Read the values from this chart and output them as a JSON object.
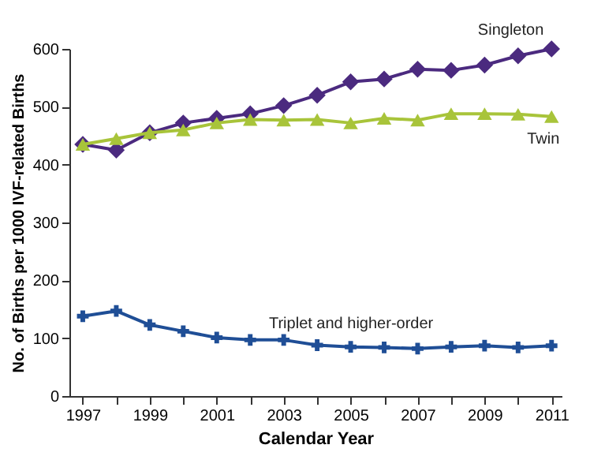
{
  "chart_data": {
    "type": "line",
    "xlabel": "Calendar Year",
    "ylabel": "No. of Births per 1000 IVF-related Births",
    "x": [
      1997,
      1998,
      1999,
      2000,
      2001,
      2002,
      2003,
      2004,
      2005,
      2006,
      2007,
      2008,
      2009,
      2010,
      2011
    ],
    "xlim": [
      1996.6,
      2011.3
    ],
    "xticks": [
      1997,
      {
        "value": 1998,
        "label": null
      },
      1999,
      {
        "value": 2000,
        "label": null
      },
      2001,
      {
        "value": 2002,
        "label": null
      },
      2003,
      {
        "value": 2004,
        "label": null
      },
      2005,
      {
        "value": 2006,
        "label": null
      },
      2007,
      {
        "value": 2008,
        "label": null
      },
      2009,
      {
        "value": 2010,
        "label": null
      },
      2011
    ],
    "ylim": [
      0,
      600
    ],
    "yticks": [
      0,
      100,
      200,
      300,
      400,
      500,
      600
    ],
    "grid": false,
    "legend": false,
    "line_style": "solid",
    "series": [
      {
        "name": "Singleton",
        "color": "#4b2a7f",
        "marker": "diamond",
        "values": [
          435,
          425,
          455,
          472,
          480,
          488,
          502,
          520,
          543,
          548,
          565,
          563,
          572,
          588,
          600
        ]
      },
      {
        "name": "Twin",
        "color": "#a8c43a",
        "marker": "triangle",
        "values": [
          435,
          445,
          455,
          460,
          472,
          478,
          477,
          478,
          472,
          480,
          477,
          488,
          488,
          487,
          483
        ]
      },
      {
        "name": "Triplet and higher-order",
        "color": "#1f4e96",
        "marker": "cross",
        "values": [
          138,
          147,
          123,
          112,
          101,
          97,
          97,
          88,
          85,
          84,
          82,
          85,
          87,
          84,
          87
        ]
      }
    ]
  }
}
